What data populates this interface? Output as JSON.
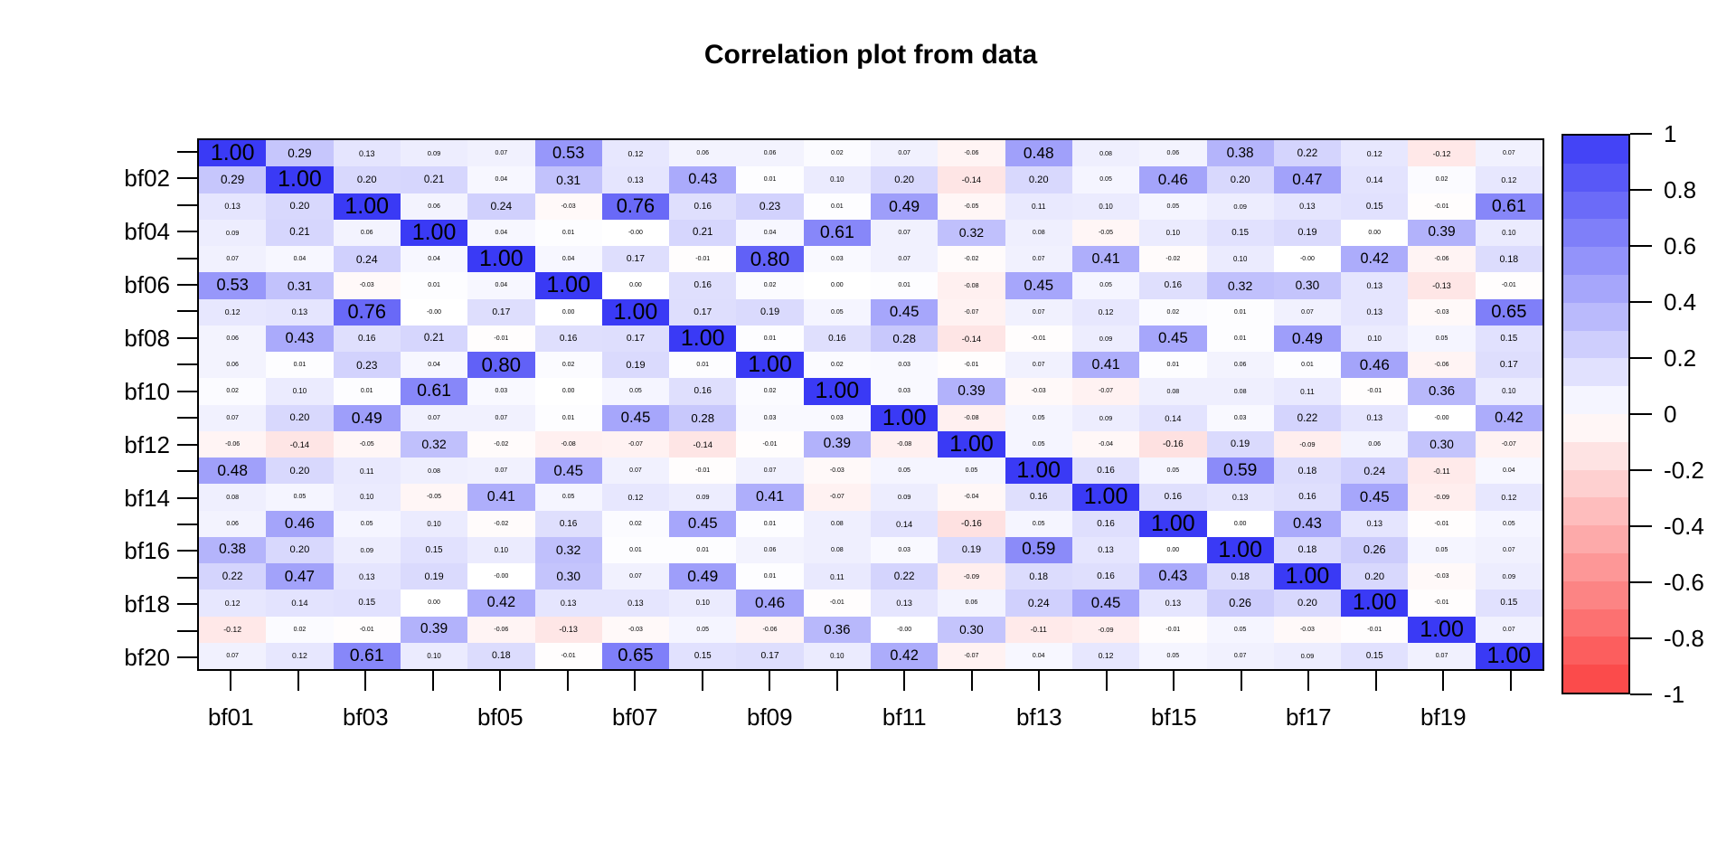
{
  "title": "Correlation plot from data",
  "chart_data": {
    "type": "heatmap",
    "title": "Correlation plot from data",
    "variables": [
      "bf01",
      "bf02",
      "bf03",
      "bf04",
      "bf05",
      "bf06",
      "bf07",
      "bf08",
      "bf09",
      "bf10",
      "bf11",
      "bf12",
      "bf13",
      "bf14",
      "bf15",
      "bf16",
      "bf17",
      "bf18",
      "bf19",
      "bf20"
    ],
    "x_axis_shown_labels": [
      "bf01",
      "bf03",
      "bf05",
      "bf07",
      "bf09",
      "bf11",
      "bf13",
      "bf15",
      "bf17",
      "bf19"
    ],
    "y_axis_shown_labels": [
      "bf02",
      "bf04",
      "bf06",
      "bf08",
      "bf10",
      "bf12",
      "bf14",
      "bf16",
      "bf18",
      "bf20"
    ],
    "matrix": [
      [
        "1.00",
        "0.29",
        "0.13",
        "0.09",
        "0.07",
        "0.53",
        "0.12",
        "0.06",
        "0.06",
        "0.02",
        "0.07",
        "-0.06",
        "0.48",
        "0.08",
        "0.06",
        "0.38",
        "0.22",
        "0.12",
        "-0.12",
        "0.07"
      ],
      [
        "0.29",
        "1.00",
        "0.20",
        "0.21",
        "0.04",
        "0.31",
        "0.13",
        "0.43",
        "0.01",
        "0.10",
        "0.20",
        "-0.14",
        "0.20",
        "0.05",
        "0.46",
        "0.20",
        "0.47",
        "0.14",
        "0.02",
        "0.12"
      ],
      [
        "0.13",
        "0.20",
        "1.00",
        "0.06",
        "0.24",
        "-0.03",
        "0.76",
        "0.16",
        "0.23",
        "0.01",
        "0.49",
        "-0.05",
        "0.11",
        "0.10",
        "0.05",
        "0.09",
        "0.13",
        "0.15",
        "-0.01",
        "0.61"
      ],
      [
        "0.09",
        "0.21",
        "0.06",
        "1.00",
        "0.04",
        "0.01",
        "-0.00",
        "0.21",
        "0.04",
        "0.61",
        "0.07",
        "0.32",
        "0.08",
        "-0.05",
        "0.10",
        "0.15",
        "0.19",
        "0.00",
        "0.39",
        "0.10"
      ],
      [
        "0.07",
        "0.04",
        "0.24",
        "0.04",
        "1.00",
        "0.04",
        "0.17",
        "-0.01",
        "0.80",
        "0.03",
        "0.07",
        "-0.02",
        "0.07",
        "0.41",
        "-0.02",
        "0.10",
        "-0.00",
        "0.42",
        "-0.06",
        "0.18"
      ],
      [
        "0.53",
        "0.31",
        "-0.03",
        "0.01",
        "0.04",
        "1.00",
        "0.00",
        "0.16",
        "0.02",
        "0.00",
        "0.01",
        "-0.08",
        "0.45",
        "0.05",
        "0.16",
        "0.32",
        "0.30",
        "0.13",
        "-0.13",
        "-0.01"
      ],
      [
        "0.12",
        "0.13",
        "0.76",
        "-0.00",
        "0.17",
        "0.00",
        "1.00",
        "0.17",
        "0.19",
        "0.05",
        "0.45",
        "-0.07",
        "0.07",
        "0.12",
        "0.02",
        "0.01",
        "0.07",
        "0.13",
        "-0.03",
        "0.65"
      ],
      [
        "0.06",
        "0.43",
        "0.16",
        "0.21",
        "-0.01",
        "0.16",
        "0.17",
        "1.00",
        "0.01",
        "0.16",
        "0.28",
        "-0.14",
        "-0.01",
        "0.09",
        "0.45",
        "0.01",
        "0.49",
        "0.10",
        "0.05",
        "0.15"
      ],
      [
        "0.06",
        "0.01",
        "0.23",
        "0.04",
        "0.80",
        "0.02",
        "0.19",
        "0.01",
        "1.00",
        "0.02",
        "0.03",
        "-0.01",
        "0.07",
        "0.41",
        "0.01",
        "0.06",
        "0.01",
        "0.46",
        "-0.06",
        "0.17"
      ],
      [
        "0.02",
        "0.10",
        "0.01",
        "0.61",
        "0.03",
        "0.00",
        "0.05",
        "0.16",
        "0.02",
        "1.00",
        "0.03",
        "0.39",
        "-0.03",
        "-0.07",
        "0.08",
        "0.08",
        "0.11",
        "-0.01",
        "0.36",
        "0.10"
      ],
      [
        "0.07",
        "0.20",
        "0.49",
        "0.07",
        "0.07",
        "0.01",
        "0.45",
        "0.28",
        "0.03",
        "0.03",
        "1.00",
        "-0.08",
        "0.05",
        "0.09",
        "0.14",
        "0.03",
        "0.22",
        "0.13",
        "-0.00",
        "0.42"
      ],
      [
        "-0.06",
        "-0.14",
        "-0.05",
        "0.32",
        "-0.02",
        "-0.08",
        "-0.07",
        "-0.14",
        "-0.01",
        "0.39",
        "-0.08",
        "1.00",
        "0.05",
        "-0.04",
        "-0.16",
        "0.19",
        "-0.09",
        "0.06",
        "0.30",
        "-0.07"
      ],
      [
        "0.48",
        "0.20",
        "0.11",
        "0.08",
        "0.07",
        "0.45",
        "0.07",
        "-0.01",
        "0.07",
        "-0.03",
        "0.05",
        "0.05",
        "1.00",
        "0.16",
        "0.05",
        "0.59",
        "0.18",
        "0.24",
        "-0.11",
        "0.04"
      ],
      [
        "0.08",
        "0.05",
        "0.10",
        "-0.05",
        "0.41",
        "0.05",
        "0.12",
        "0.09",
        "0.41",
        "-0.07",
        "0.09",
        "-0.04",
        "0.16",
        "1.00",
        "0.16",
        "0.13",
        "0.16",
        "0.45",
        "-0.09",
        "0.12"
      ],
      [
        "0.06",
        "0.46",
        "0.05",
        "0.10",
        "-0.02",
        "0.16",
        "0.02",
        "0.45",
        "0.01",
        "0.08",
        "0.14",
        "-0.16",
        "0.05",
        "0.16",
        "1.00",
        "0.00",
        "0.43",
        "0.13",
        "-0.01",
        "0.05"
      ],
      [
        "0.38",
        "0.20",
        "0.09",
        "0.15",
        "0.10",
        "0.32",
        "0.01",
        "0.01",
        "0.06",
        "0.08",
        "0.03",
        "0.19",
        "0.59",
        "0.13",
        "0.00",
        "1.00",
        "0.18",
        "0.26",
        "0.05",
        "0.07"
      ],
      [
        "0.22",
        "0.47",
        "0.13",
        "0.19",
        "-0.00",
        "0.30",
        "0.07",
        "0.49",
        "0.01",
        "0.11",
        "0.22",
        "-0.09",
        "0.18",
        "0.16",
        "0.43",
        "0.18",
        "1.00",
        "0.20",
        "-0.03",
        "0.09"
      ],
      [
        "0.12",
        "0.14",
        "0.15",
        "0.00",
        "0.42",
        "0.13",
        "0.13",
        "0.10",
        "0.46",
        "-0.01",
        "0.13",
        "0.06",
        "0.24",
        "0.45",
        "0.13",
        "0.26",
        "0.20",
        "1.00",
        "-0.01",
        "0.15"
      ],
      [
        "-0.12",
        "0.02",
        "-0.01",
        "0.39",
        "-0.06",
        "-0.13",
        "-0.03",
        "0.05",
        "-0.06",
        "0.36",
        "-0.00",
        "0.30",
        "-0.11",
        "-0.09",
        "-0.01",
        "0.05",
        "-0.03",
        "-0.01",
        "1.00",
        "0.07"
      ],
      [
        "0.07",
        "0.12",
        "0.61",
        "0.10",
        "0.18",
        "-0.01",
        "0.65",
        "0.15",
        "0.17",
        "0.10",
        "0.42",
        "-0.07",
        "0.04",
        "0.12",
        "0.05",
        "0.07",
        "0.09",
        "0.15",
        "0.07",
        "1.00"
      ]
    ],
    "colorbar": {
      "position": "right",
      "ticks": [
        "1",
        "0.8",
        "0.6",
        "0.4",
        "0.2",
        "0",
        "-0.2",
        "-0.4",
        "-0.6",
        "-0.8",
        "-1"
      ],
      "range": [
        -1,
        1
      ],
      "bands": 20
    },
    "colors": {
      "positive_max": "#3A3AF5",
      "zero": "#FFFFFF",
      "negative_min": "#FB4242",
      "cell_text": "#000000",
      "axis": "#000000"
    },
    "grid": false,
    "xlabel": "",
    "ylabel": ""
  }
}
